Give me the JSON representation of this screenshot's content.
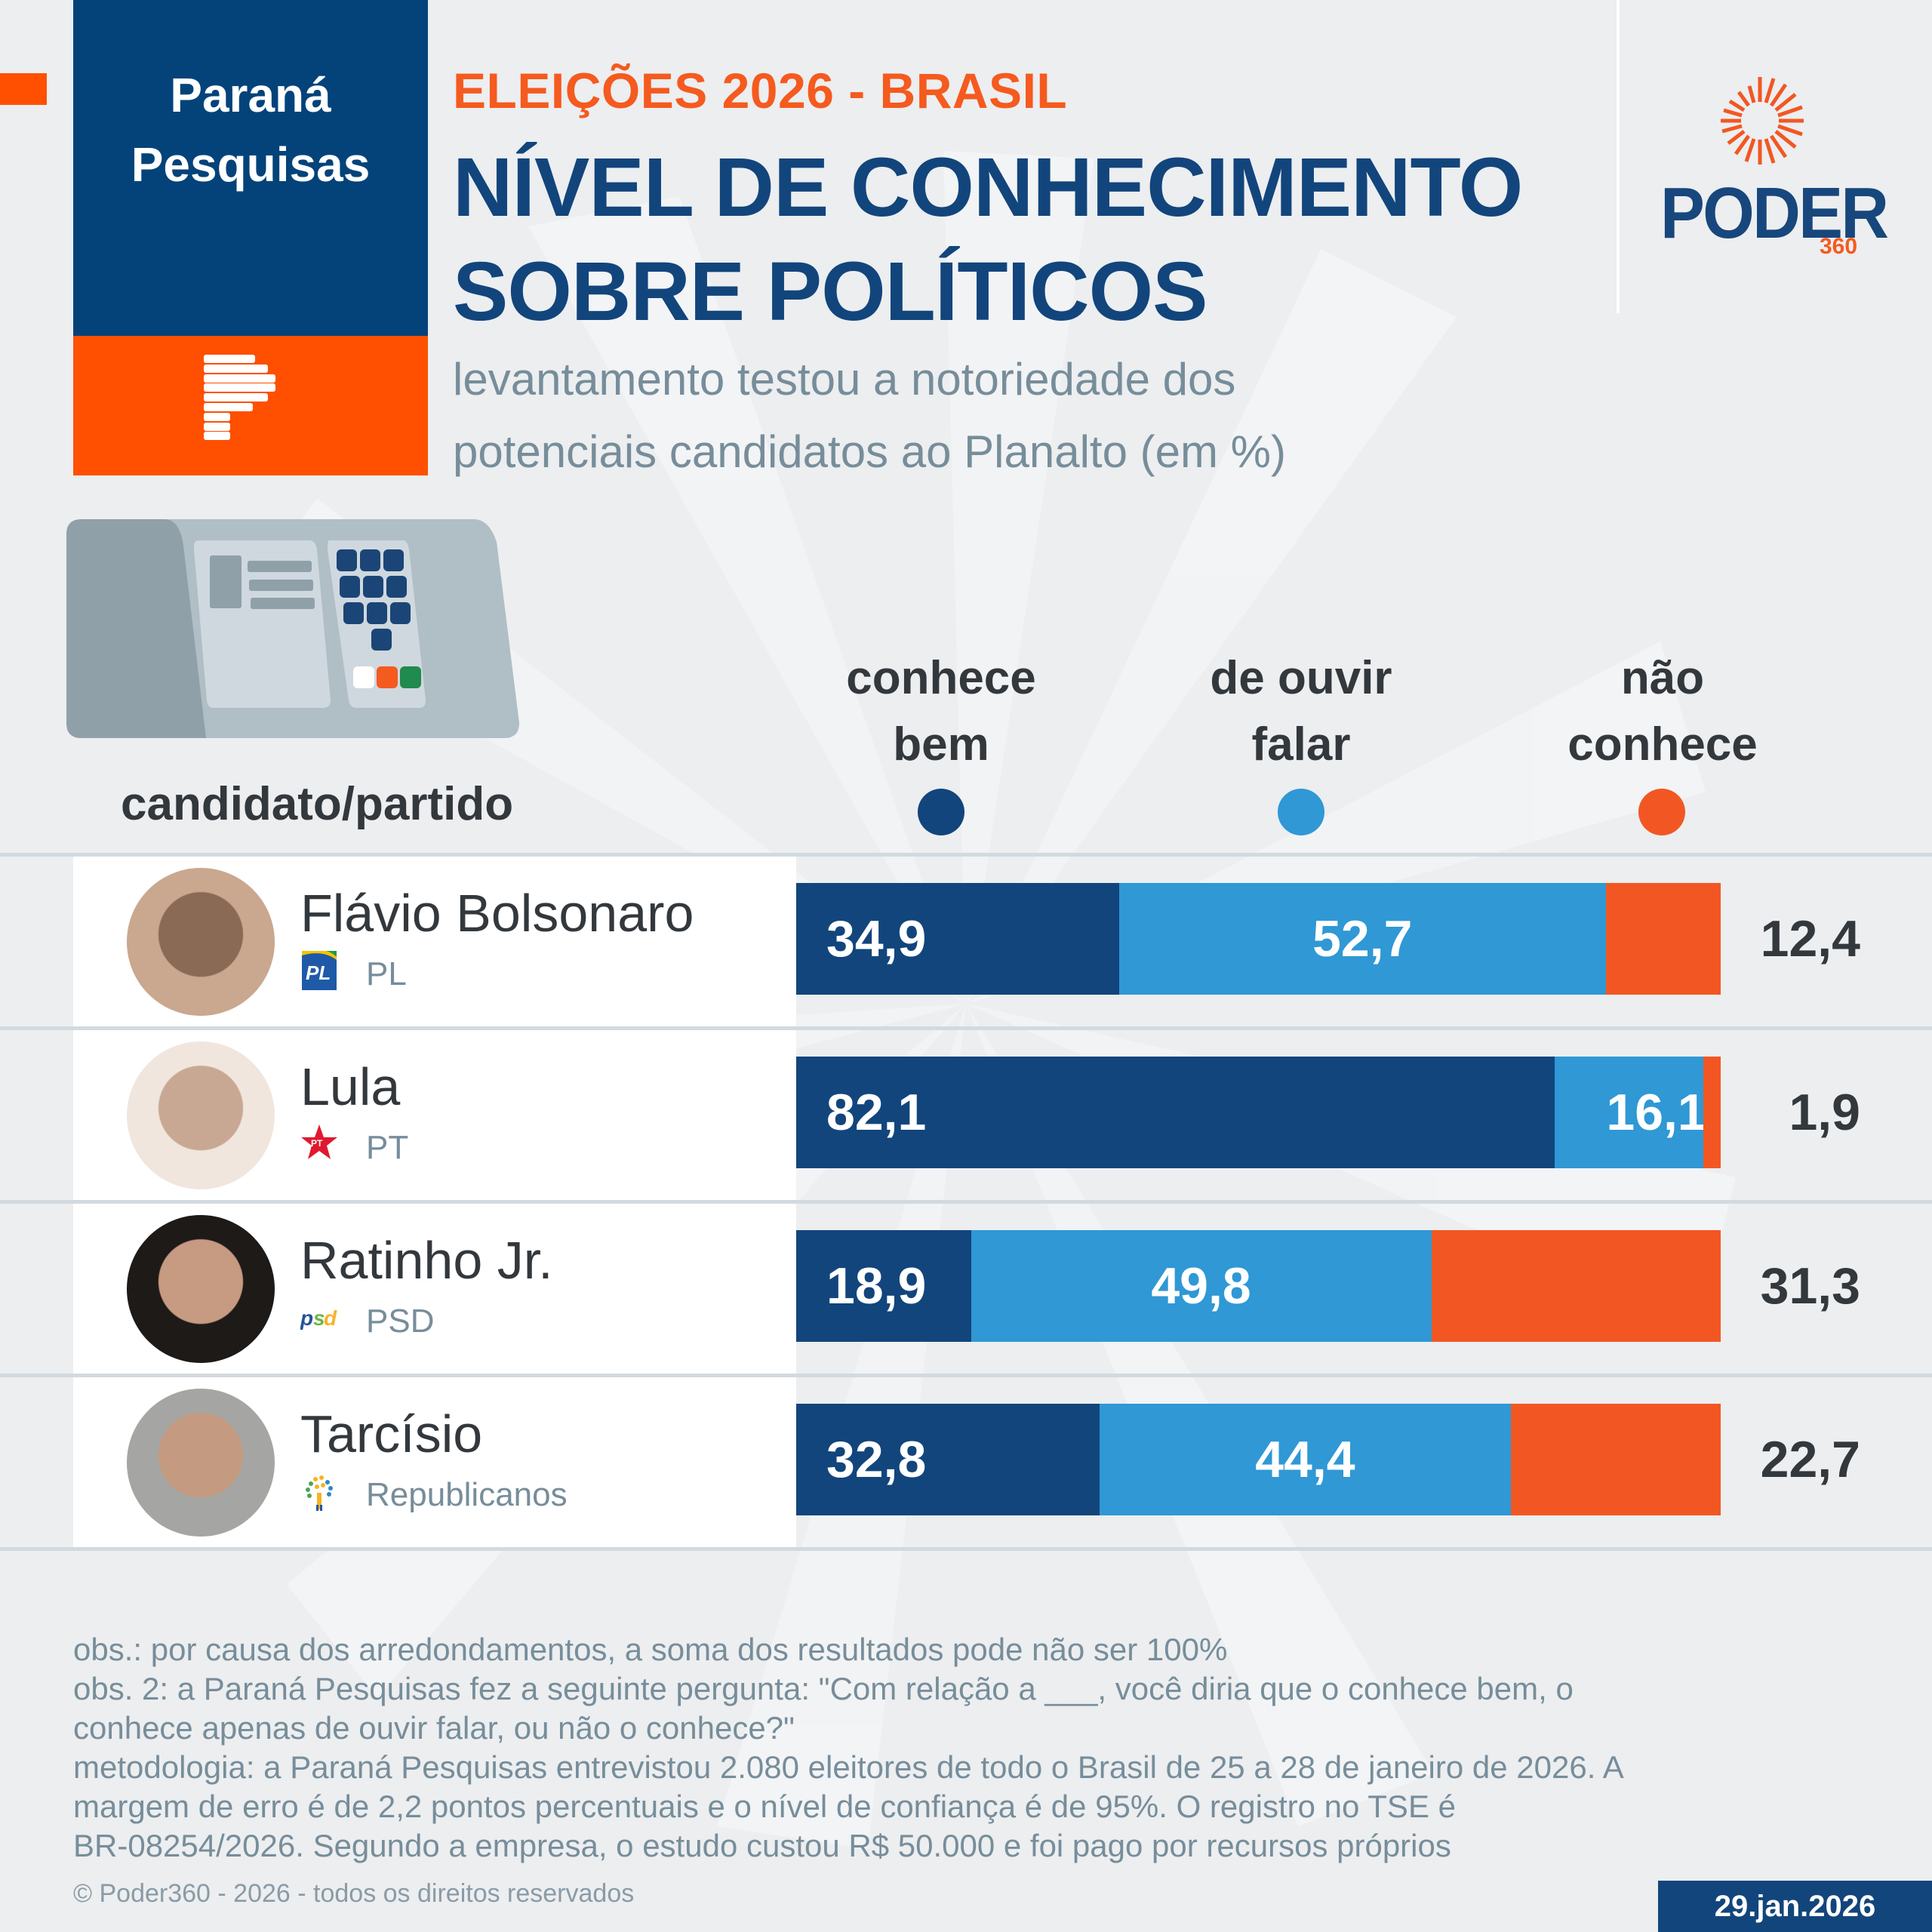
{
  "header": {
    "pollster_name_line1": "Paraná",
    "pollster_name_line2": "Pesquisas",
    "kicker": "ELEIÇÕES 2026 - BRASIL",
    "title_line1": "NÍVEL DE CONHECIMENTO",
    "title_line2": "SOBRE POLÍTICOS",
    "subtitle_line1": "levantamento testou a notoriedade dos",
    "subtitle_line2": "potenciais candidatos ao Planalto (em %)",
    "brand_word": "PODER",
    "brand_number": "360"
  },
  "colors": {
    "navy": "#12457c",
    "pp_blue": "#03437a",
    "light_blue": "#2f98d5",
    "orange": "#f25723",
    "pp_orange": "#fe5000",
    "text_dark": "#33383d",
    "text_gray": "#778d9a"
  },
  "table": {
    "candidate_header": "candidato/partido"
  },
  "chart_data": {
    "type": "bar",
    "orientation": "horizontal-stacked",
    "title": "NÍVEL DE CONHECIMENTO SOBRE POLÍTICOS",
    "subtitle": "levantamento testou a notoriedade dos potenciais candidatos ao Planalto (em %)",
    "xlim": [
      0,
      100
    ],
    "grid": false,
    "legend_position": "top",
    "categories": [
      "Flávio Bolsonaro",
      "Lula",
      "Ratinho Jr.",
      "Tarcísio"
    ],
    "parties": [
      "PL",
      "PT",
      "PSD",
      "Republicanos"
    ],
    "party_icons": [
      "pl-logo-icon",
      "pt-star-icon",
      "psd-logo-icon",
      "republicanos-tree-icon"
    ],
    "series": [
      {
        "name_line1": "conhece",
        "name_line2": "bem",
        "color": "#12457c",
        "values": [
          34.9,
          82.1,
          18.9,
          32.8
        ],
        "labels": [
          "34,9",
          "82,1",
          "18,9",
          "32,8"
        ]
      },
      {
        "name_line1": "de ouvir",
        "name_line2": "falar",
        "color": "#2f98d5",
        "values": [
          52.7,
          16.1,
          49.8,
          44.4
        ],
        "labels": [
          "52,7",
          "16,1",
          "49,8",
          "44,4"
        ]
      },
      {
        "name_line1": "não",
        "name_line2": "conhece",
        "color": "#f25723",
        "values": [
          12.4,
          1.9,
          31.3,
          22.7
        ],
        "labels": [
          "12,4",
          "1,9",
          "31,3",
          "22,7"
        ]
      }
    ]
  },
  "notes": {
    "line1": "obs.: por causa dos arredondamentos, a soma dos resultados pode não ser 100%",
    "line2": "obs. 2: a Paraná Pesquisas fez a seguinte pergunta: \"Com relação a ___, você diria que o conhece bem, o",
    "line3": "conhece apenas de ouvir falar, ou não o conhece?\"",
    "line4": "metodologia: a Paraná Pesquisas entrevistou 2.080 eleitores de todo o Brasil de 25 a 28 de janeiro de 2026. A",
    "line5": "margem de erro é de 2,2 pontos percentuais e o nível de confiança é de 95%. O registro no TSE é",
    "line6": "BR-08254/2026. Segundo a empresa, o estudo custou R$ 50.000 e foi pago por recursos próprios"
  },
  "footer": {
    "copyright": "© Poder360 - 2026 - todos os direitos reservados",
    "date": "29.jan.2026"
  }
}
